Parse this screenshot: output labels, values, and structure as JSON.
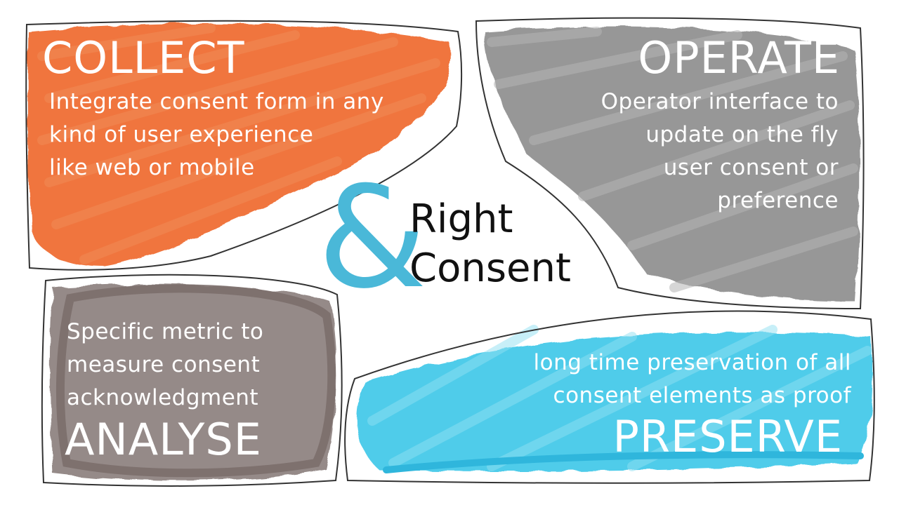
{
  "colors": {
    "collect": "#ef6a2e",
    "operate": "#8c8c8c",
    "analyse": "#8a7e7c",
    "preserve": "#3cc7e8",
    "logo_ampersand": "#4ab8d8",
    "outline": "#333333"
  },
  "collect": {
    "title": "COLLECT",
    "lines": [
      "Integrate consent form in any",
      "kind of user experience",
      "like web or mobile"
    ]
  },
  "operate": {
    "title": "OPERATE",
    "lines": [
      "Operator interface to",
      "update on the fly",
      "user consent or",
      "preference"
    ]
  },
  "analyse": {
    "title": "ANALYSE",
    "lines": [
      "Specific metric to",
      "measure consent",
      "acknowledgment"
    ]
  },
  "preserve": {
    "title": "PRESERVE",
    "lines": [
      "long time preservation of all",
      "consent elements as proof"
    ]
  },
  "logo": {
    "symbol": "&",
    "line1": "Right",
    "line2": "Consent"
  }
}
